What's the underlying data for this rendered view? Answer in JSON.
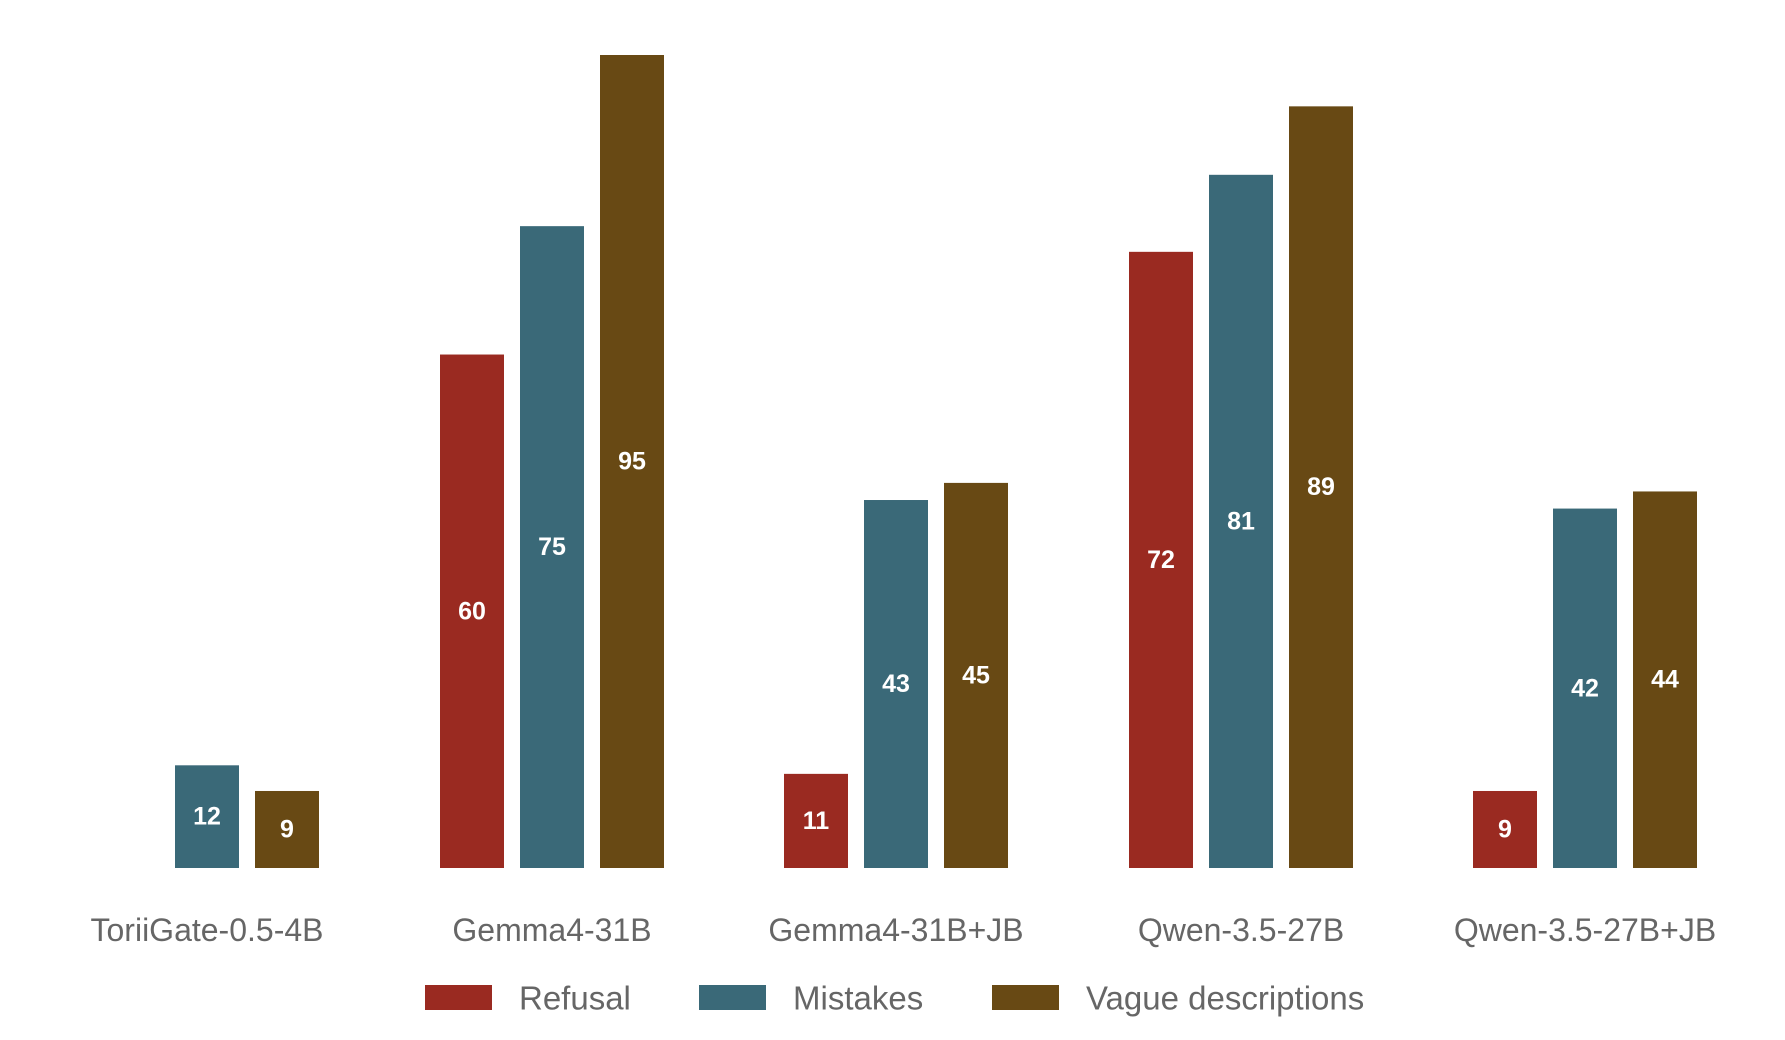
{
  "chart_data": {
    "type": "bar",
    "title": "",
    "xlabel": "",
    "ylabel": "",
    "ylim": [
      0,
      95
    ],
    "grid": false,
    "legend_position": "bottom",
    "categories": [
      "ToriiGate-0.5-4B",
      "Gemma4-31B",
      "Gemma4-31B+JB",
      "Qwen-3.5-27B",
      "Qwen-3.5-27B+JB"
    ],
    "series": [
      {
        "name": "Refusal",
        "color": "#9a2a21",
        "values": [
          null,
          60,
          11,
          72,
          9
        ]
      },
      {
        "name": "Mistakes",
        "color": "#3a6978",
        "values": [
          12,
          75,
          43,
          81,
          42
        ]
      },
      {
        "name": "Vague descriptions",
        "color": "#684914",
        "values": [
          9,
          95,
          45,
          89,
          44
        ]
      }
    ]
  }
}
